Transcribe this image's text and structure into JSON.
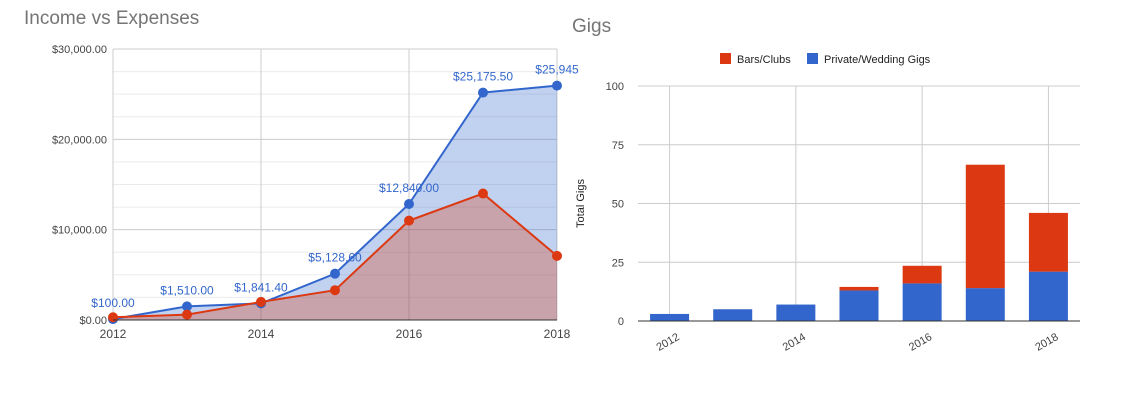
{
  "chart_data": [
    {
      "type": "area",
      "title": "Income vs Expenses",
      "x": [
        2012,
        2013,
        2014,
        2015,
        2016,
        2017,
        2018
      ],
      "x_tick_labels": [
        "2012",
        "2014",
        "2016",
        "2018"
      ],
      "y_tick_labels": [
        "$0.00",
        "$10,000.00",
        "$20,000.00",
        "$30,000.00"
      ],
      "ylim": [
        0,
        30000
      ],
      "grid": true,
      "series": [
        {
          "values": [
            100,
            1510,
            1841.4,
            5128.6,
            12840,
            25175.5,
            25945
          ],
          "data_labels": [
            "$100.00",
            "$1,510.00",
            "$1,841.40",
            "$5,128.60",
            "$12,840.00",
            "$25,175.50",
            "$25,945"
          ],
          "color": "#3366cc"
        },
        {
          "values": [
            300,
            600,
            2000,
            3300,
            11000,
            14000,
            7100
          ],
          "color": "#dc3912"
        }
      ]
    },
    {
      "type": "bar",
      "stacked": true,
      "title": "Gigs",
      "ylabel": "Total Gigs",
      "x": [
        2012,
        2013,
        2014,
        2015,
        2016,
        2017,
        2018
      ],
      "x_tick_labels": [
        "2012",
        "2014",
        "2016",
        "2018"
      ],
      "y_tick_labels": [
        "0",
        "25",
        "50",
        "75",
        "100"
      ],
      "ylim": [
        0,
        100
      ],
      "grid": true,
      "legend_position": "top",
      "series": [
        {
          "name": "Private/Wedding Gigs",
          "values": [
            3,
            5,
            7,
            13,
            16,
            14,
            21
          ],
          "color": "#3366cc"
        },
        {
          "name": "Bars/Clubs",
          "values": [
            0,
            0,
            0,
            1.5,
            7.5,
            52.5,
            25
          ],
          "color": "#dc3912"
        }
      ]
    }
  ]
}
